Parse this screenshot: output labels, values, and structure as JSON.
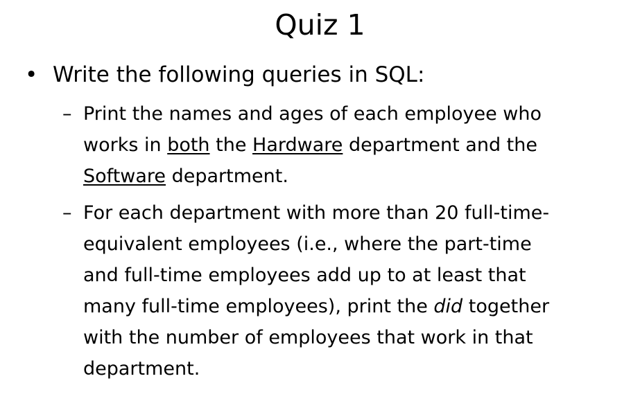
{
  "slide": {
    "title": "Quiz 1",
    "bullet": {
      "symbol": "•",
      "text": "Write the following queries in SQL:"
    },
    "subitems": [
      {
        "symbol": "–",
        "line1": "Print the names and ages of each employee who",
        "line2_prefix": "works in ",
        "line2_u1": "both",
        "line2_mid": " the ",
        "line2_u2": "Hardware",
        "line2_suffix": " department and the",
        "line3_u": "Software",
        "line3_suffix": " department."
      },
      {
        "symbol": "–",
        "line1": "For each department with more than 20 full-time-",
        "line2": "equivalent employees (i.e., where the part-time",
        "line3": "and full-time employees add up to at least that",
        "line4_prefix": "many full-time employees), print the ",
        "line4_italic": "did",
        "line4_suffix": " together",
        "line5": "with the number of employees that work in that",
        "line6": "department."
      }
    ]
  }
}
